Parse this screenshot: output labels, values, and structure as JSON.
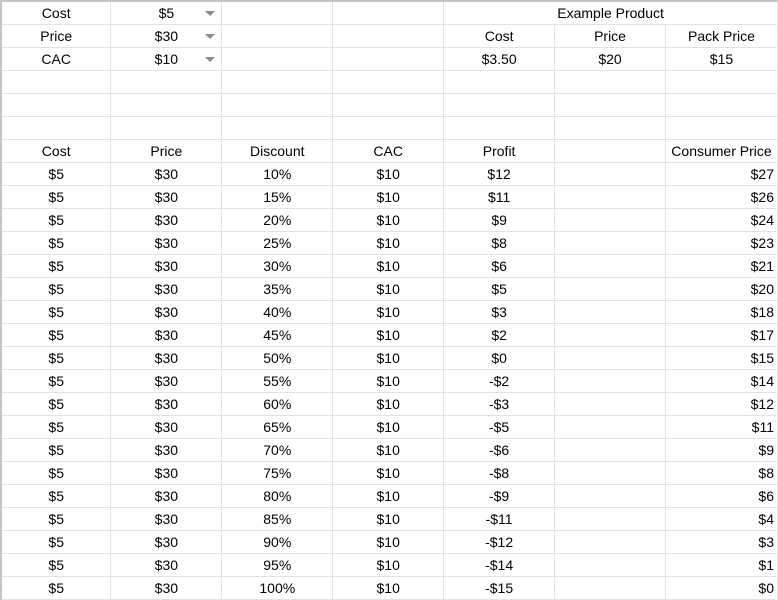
{
  "inputs": [
    {
      "label": "Cost",
      "value": "$5"
    },
    {
      "label": "Price",
      "value": "$30"
    },
    {
      "label": "CAC",
      "value": "$10"
    }
  ],
  "example_product": {
    "title": "Example Product",
    "headers": [
      "Cost",
      "Price",
      "Pack Price"
    ],
    "values": [
      "$3.50",
      "$20",
      "$15"
    ]
  },
  "table": {
    "headers": [
      "Cost",
      "Price",
      "Discount",
      "CAC",
      "Profit",
      "",
      "Consumer Price"
    ],
    "rows": [
      [
        "$5",
        "$30",
        "10%",
        "$10",
        "$12",
        "",
        "$27"
      ],
      [
        "$5",
        "$30",
        "15%",
        "$10",
        "$11",
        "",
        "$26"
      ],
      [
        "$5",
        "$30",
        "20%",
        "$10",
        "$9",
        "",
        "$24"
      ],
      [
        "$5",
        "$30",
        "25%",
        "$10",
        "$8",
        "",
        "$23"
      ],
      [
        "$5",
        "$30",
        "30%",
        "$10",
        "$6",
        "",
        "$21"
      ],
      [
        "$5",
        "$30",
        "35%",
        "$10",
        "$5",
        "",
        "$20"
      ],
      [
        "$5",
        "$30",
        "40%",
        "$10",
        "$3",
        "",
        "$18"
      ],
      [
        "$5",
        "$30",
        "45%",
        "$10",
        "$2",
        "",
        "$17"
      ],
      [
        "$5",
        "$30",
        "50%",
        "$10",
        "$0",
        "",
        "$15"
      ],
      [
        "$5",
        "$30",
        "55%",
        "$10",
        "-$2",
        "",
        "$14"
      ],
      [
        "$5",
        "$30",
        "60%",
        "$10",
        "-$3",
        "",
        "$12"
      ],
      [
        "$5",
        "$30",
        "65%",
        "$10",
        "-$5",
        "",
        "$11"
      ],
      [
        "$5",
        "$30",
        "70%",
        "$10",
        "-$6",
        "",
        "$9"
      ],
      [
        "$5",
        "$30",
        "75%",
        "$10",
        "-$8",
        "",
        "$8"
      ],
      [
        "$5",
        "$30",
        "80%",
        "$10",
        "-$9",
        "",
        "$6"
      ],
      [
        "$5",
        "$30",
        "85%",
        "$10",
        "-$11",
        "",
        "$4"
      ],
      [
        "$5",
        "$30",
        "90%",
        "$10",
        "-$12",
        "",
        "$3"
      ],
      [
        "$5",
        "$30",
        "95%",
        "$10",
        "-$14",
        "",
        "$1"
      ],
      [
        "$5",
        "$30",
        "100%",
        "$10",
        "-$15",
        "",
        "$0"
      ]
    ]
  }
}
